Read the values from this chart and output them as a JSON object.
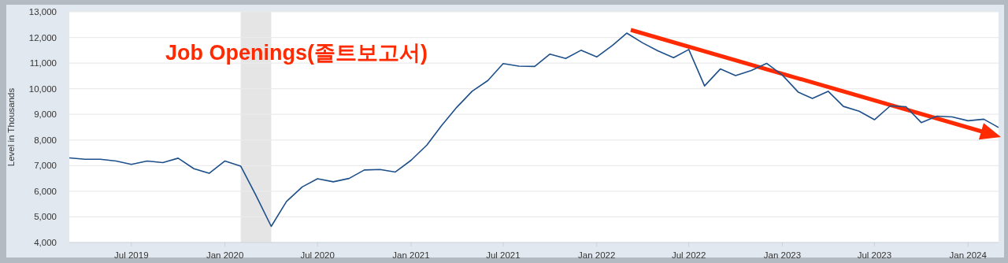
{
  "chart_data": {
    "type": "line",
    "title": "Job Openings(졸트보고서)",
    "ylabel": "Level in Thousands",
    "x": [
      "2019-03",
      "2019-04",
      "2019-05",
      "2019-06",
      "2019-07",
      "2019-08",
      "2019-09",
      "2019-10",
      "2019-11",
      "2019-12",
      "2020-01",
      "2020-02",
      "2020-03",
      "2020-04",
      "2020-05",
      "2020-06",
      "2020-07",
      "2020-08",
      "2020-09",
      "2020-10",
      "2020-11",
      "2020-12",
      "2021-01",
      "2021-02",
      "2021-03",
      "2021-04",
      "2021-05",
      "2021-06",
      "2021-07",
      "2021-08",
      "2021-09",
      "2021-10",
      "2021-11",
      "2021-12",
      "2022-01",
      "2022-02",
      "2022-03",
      "2022-04",
      "2022-05",
      "2022-06",
      "2022-07",
      "2022-08",
      "2022-09",
      "2022-10",
      "2022-11",
      "2022-12",
      "2023-01",
      "2023-02",
      "2023-03",
      "2023-04",
      "2023-05",
      "2023-06",
      "2023-07",
      "2023-08",
      "2023-09",
      "2023-10",
      "2023-11",
      "2023-12",
      "2024-01",
      "2024-02",
      "2024-03"
    ],
    "series": [
      {
        "color": "#1d4f8a",
        "values": [
          7300,
          7250,
          7250,
          7180,
          7050,
          7180,
          7120,
          7290,
          6880,
          6700,
          7180,
          6980,
          5880,
          4630,
          5600,
          6170,
          6490,
          6370,
          6500,
          6830,
          6850,
          6750,
          7210,
          7800,
          8540,
          9280,
          9900,
          10320,
          10980,
          10880,
          10870,
          11350,
          11180,
          11500,
          11240,
          11690,
          12170,
          11790,
          11480,
          11210,
          11530,
          10110,
          10770,
          10510,
          10710,
          10990,
          10530,
          9870,
          9620,
          9900,
          9310,
          9120,
          8790,
          9330,
          9300,
          8680,
          8930,
          8900,
          8750,
          8810,
          8490
        ]
      }
    ],
    "xlim": [
      "2019-03",
      "2024-03"
    ],
    "xticks": [
      {
        "value": "2019-07",
        "label": "Jul 2019"
      },
      {
        "value": "2020-01",
        "label": "Jan 2020"
      },
      {
        "value": "2020-07",
        "label": "Jul 2020"
      },
      {
        "value": "2021-01",
        "label": "Jan 2021"
      },
      {
        "value": "2021-07",
        "label": "Jul 2021"
      },
      {
        "value": "2022-01",
        "label": "Jan 2022"
      },
      {
        "value": "2022-07",
        "label": "Jul 2022"
      },
      {
        "value": "2023-01",
        "label": "Jan 2023"
      },
      {
        "value": "2023-07",
        "label": "Jul 2023"
      },
      {
        "value": "2024-01",
        "label": "Jan 2024"
      }
    ],
    "ylim": [
      4000,
      13000
    ],
    "yticks": [
      {
        "value": 4000,
        "label": "4,000"
      },
      {
        "value": 5000,
        "label": "5,000"
      },
      {
        "value": 6000,
        "label": "6,000"
      },
      {
        "value": 7000,
        "label": "7,000"
      },
      {
        "value": 8000,
        "label": "8,000"
      },
      {
        "value": 9000,
        "label": "9,000"
      },
      {
        "value": 10000,
        "label": "10,000"
      },
      {
        "value": 11000,
        "label": "11,000"
      },
      {
        "value": 12000,
        "label": "12,000"
      },
      {
        "value": 13000,
        "label": "13,000"
      }
    ],
    "bands": [
      {
        "axis": "x",
        "from": "2020-02",
        "to": "2020-04",
        "color": "#e5e5e5"
      }
    ],
    "grid": "y",
    "marker": "none",
    "line_style": "solid"
  }
}
